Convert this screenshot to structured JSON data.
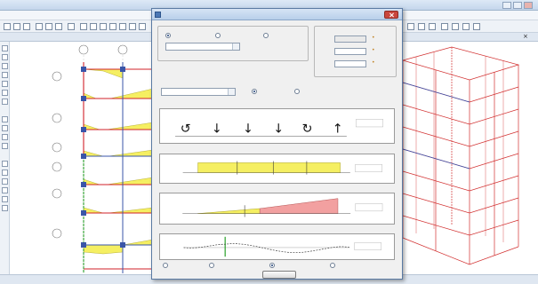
{
  "app": {
    "title": "",
    "menus": [],
    "tab_label": "",
    "status_left": "",
    "status_right": ""
  },
  "dialog": {
    "title": "",
    "load_case": {
      "group_label": "",
      "selected_value": ""
    },
    "location": {
      "group_label": ""
    },
    "component": {
      "label": "",
      "selected_value": ""
    },
    "display_options": {
      "label": ""
    },
    "sections": {
      "equilibrium": "",
      "shear": "",
      "moment": "",
      "deflection": ""
    },
    "footer_options": [],
    "done_label": ""
  },
  "colors": {
    "titlebar": "#c4d6ec",
    "dialog_border": "#5a7aa3",
    "positive_fill": "#f5ef62",
    "negative_fill": "#f2a0a0",
    "frame_red": "#d0202a",
    "frame_blue": "#3a55a8",
    "frame_green": "#2aa02a",
    "model_red": "#d23030"
  }
}
